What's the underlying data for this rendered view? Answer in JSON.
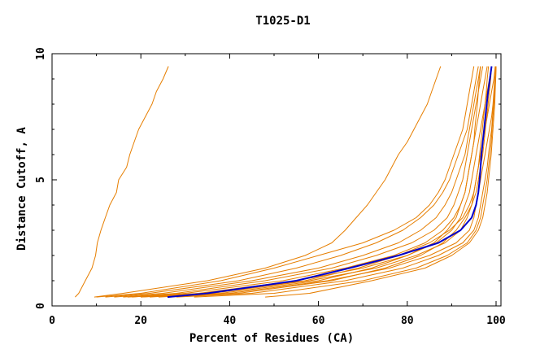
{
  "chart_data": {
    "type": "line",
    "title": "T1025-D1",
    "xlabel": "Percent of Residues (CA)",
    "ylabel": "Distance Cutoff, A",
    "xlim": [
      0,
      100
    ],
    "ylim": [
      0,
      10
    ],
    "x_ticks": [
      0,
      20,
      40,
      60,
      80,
      100
    ],
    "y_ticks": [
      0,
      5,
      10
    ],
    "grid": false,
    "legend": "none",
    "colors": {
      "models": "#e67e00",
      "highlight": "#0000cc"
    },
    "y_values": [
      0.35,
      0.5,
      1,
      1.5,
      2,
      2.5,
      3,
      3.5,
      4,
      4.5,
      5,
      5.5,
      6,
      6.5,
      7,
      7.5,
      8,
      8.5,
      9,
      9.5
    ],
    "series": [
      {
        "color": "#e67e00",
        "x": [
          5.2,
          6,
          7.5,
          9,
          9.8,
          10.2,
          11,
          12,
          13,
          14.5,
          15,
          16.8,
          17.5,
          18.5,
          19.5,
          21,
          22.5,
          23.5,
          25,
          26.2
        ]
      },
      {
        "color": "#e67e00",
        "x": [
          9.5,
          16,
          35,
          48,
          57,
          63,
          66,
          68.5,
          71,
          73,
          75,
          76.5,
          78,
          80,
          81.5,
          83,
          84.5,
          85.5,
          86.5,
          87.5
        ]
      },
      {
        "color": "#e67e00",
        "x": [
          10,
          20,
          38,
          50,
          60,
          70,
          77,
          82,
          85,
          87,
          88.5,
          89.5,
          90.5,
          91.5,
          92.5,
          93,
          93.5,
          94,
          94.5,
          95
        ]
      },
      {
        "color": "#e67e00",
        "x": [
          12,
          22,
          42,
          55,
          65,
          73,
          79,
          83,
          86,
          88,
          89.5,
          90.5,
          91.5,
          92.5,
          93.5,
          94,
          94.5,
          95,
          95.5,
          96
        ]
      },
      {
        "color": "#e67e00",
        "x": [
          14,
          25,
          45,
          60,
          70,
          78,
          83,
          86.5,
          88.5,
          90,
          91,
          92,
          93,
          93.5,
          94,
          94.5,
          95,
          95.5,
          96,
          96.5
        ]
      },
      {
        "color": "#e67e00",
        "x": [
          16,
          28,
          48,
          63,
          73,
          81,
          86,
          89,
          90.5,
          91.5,
          92.5,
          93,
          93.5,
          94,
          94.5,
          95,
          95.5,
          96,
          96.5,
          97
        ]
      },
      {
        "color": "#e67e00",
        "x": [
          18,
          30,
          52,
          66,
          77,
          84,
          88,
          90.5,
          92,
          93,
          93.5,
          94,
          94.5,
          95,
          95.5,
          96,
          96.5,
          97,
          97.5,
          98
        ]
      },
      {
        "color": "#e67e00",
        "x": [
          20,
          33,
          55,
          70,
          80,
          86.5,
          90,
          92,
          93,
          94,
          94.5,
          95,
          95.5,
          96,
          96.5,
          97,
          97.5,
          98,
          98.5,
          99
        ]
      },
      {
        "color": "#e67e00",
        "x": [
          22,
          36,
          58,
          73,
          82,
          88.5,
          92,
          93.5,
          94.5,
          95,
          95.5,
          96,
          96.5,
          97,
          97.5,
          98,
          98.5,
          99,
          99.5,
          99.8
        ]
      },
      {
        "color": "#e67e00",
        "x": [
          24,
          40,
          62,
          76,
          85,
          91,
          94,
          95,
          95.5,
          96,
          96.5,
          97,
          97.5,
          98,
          98.5,
          99,
          99.3,
          99.5,
          99.7,
          99.9
        ]
      },
      {
        "color": "#e67e00",
        "x": [
          28,
          45,
          66,
          79,
          87,
          92.5,
          95,
          96,
          96.5,
          97,
          97.5,
          98,
          98.3,
          98.6,
          99,
          99.2,
          99.4,
          99.6,
          99.8,
          100
        ]
      },
      {
        "color": "#e67e00",
        "x": [
          32,
          50,
          70,
          82,
          89,
          93.5,
          95.5,
          96.5,
          97,
          97.5,
          98,
          98.3,
          98.6,
          98.9,
          99.1,
          99.3,
          99.5,
          99.7,
          99.9,
          100
        ]
      },
      {
        "color": "#e67e00",
        "x": [
          48,
          58,
          72,
          84,
          90,
          94,
          96,
          97,
          97.5,
          98,
          98.3,
          98.6,
          98.9,
          99.1,
          99.3,
          99.5,
          99.7,
          99.8,
          99.9,
          100
        ]
      },
      {
        "color": "#e67e00",
        "x": [
          20,
          38,
          60,
          72,
          80,
          86,
          89,
          91,
          92,
          93,
          93.5,
          94,
          94.5,
          95,
          95.2,
          95.5,
          95.8,
          96,
          96.2,
          96.5
        ]
      },
      {
        "color": "#e67e00",
        "x": [
          17,
          34,
          57,
          69,
          78,
          85,
          89.5,
          92.5,
          94,
          95,
          95.5,
          96,
          96.3,
          96.6,
          96.9,
          97.2,
          97.5,
          97.8,
          98,
          98.3
        ]
      },
      {
        "color": "#e67e00",
        "x": [
          26,
          42,
          63,
          75,
          83,
          88,
          91,
          93,
          94.5,
          95.5,
          96,
          96.5,
          97,
          97.3,
          97.6,
          97.9,
          98.2,
          98.5,
          98.8,
          99
        ]
      },
      {
        "color": "#0000cc",
        "name": "",
        "x": [
          26,
          35,
          55,
          67,
          78,
          87,
          92,
          94.5,
          95.5,
          96,
          96.3,
          96.5,
          96.7,
          97,
          97.3,
          97.6,
          97.9,
          98.2,
          98.6,
          99
        ]
      }
    ]
  }
}
